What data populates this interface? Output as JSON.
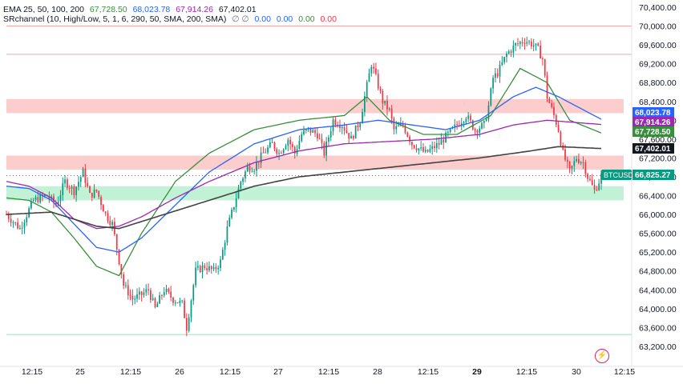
{
  "legend": {
    "ema_label": "EMA 25, 50, 100, 200",
    "ema_values": [
      "67,728.50",
      "68,023.78",
      "67,914.26",
      "67,402.01"
    ],
    "ema_colors": [
      "#388e3c",
      "#2962ff",
      "#9c27b0",
      "#424242"
    ],
    "sr_label": "SRchannel (10, High/Low, 5, 1, 6, 290, 50, SMA, 200, SMA)",
    "sr_symbols": "∅ ∅",
    "sr_values": [
      "0.00",
      "0.00",
      "0.00",
      "0.00"
    ],
    "sr_colors": [
      "#2962ff",
      "#2962ff",
      "#388e3c",
      "#f23645"
    ]
  },
  "price_badges": [
    {
      "value": "68,023.78",
      "color": "#2962ff"
    },
    {
      "value": "67,914.26",
      "color": "#9c27b0"
    },
    {
      "value": "67,728.50",
      "color": "#388e3c"
    },
    {
      "value": "67,402.01",
      "color": "#131722"
    },
    {
      "value": "66,825.27",
      "color": "#089981",
      "label": "BTCUSD"
    }
  ],
  "chart_data": {
    "type": "candlestick",
    "symbol": "BTCUSD",
    "ylim": [
      63000,
      70550
    ],
    "y_ticks": [
      "70,400.00",
      "70,000.00",
      "69,600.00",
      "69,200.00",
      "68,800.00",
      "68,400.00",
      "68,000.00",
      "67,600.00",
      "67,200.00",
      "66,800.00",
      "66,400.00",
      "66,000.00",
      "65,600.00",
      "65,200.00",
      "64,800.00",
      "64,400.00",
      "64,000.00",
      "63,600.00",
      "63,200.00"
    ],
    "x_ticks": [
      "12:15",
      "25",
      "12:15",
      "26",
      "12:15",
      "27",
      "12:15",
      "28",
      "12:15",
      "29",
      "12:15",
      "30",
      "12:15"
    ],
    "x_ticks_bold": [
      "29"
    ],
    "sr_zones": [
      {
        "from": 68150,
        "to": 68450,
        "type": "resistance"
      },
      {
        "from": 66950,
        "to": 67250,
        "type": "resistance"
      },
      {
        "from": 66300,
        "to": 66600,
        "type": "support"
      }
    ],
    "h_lines": [
      {
        "price": 70000,
        "color": "#f7a5a5"
      },
      {
        "price": 69400,
        "color": "#f7a5a5"
      },
      {
        "price": 63450,
        "color": "#9be0bd"
      }
    ],
    "last_price_line": 66825,
    "candle_anchors": [
      [
        0,
        66000
      ],
      [
        6,
        65700
      ],
      [
        12,
        66300
      ],
      [
        18,
        66400
      ],
      [
        22,
        66200
      ],
      [
        26,
        66700
      ],
      [
        30,
        66500
      ],
      [
        34,
        66900
      ],
      [
        37,
        66400
      ],
      [
        40,
        66500
      ],
      [
        44,
        66000
      ],
      [
        47,
        65800
      ],
      [
        52,
        64500
      ],
      [
        56,
        64200
      ],
      [
        60,
        64300
      ],
      [
        63,
        64400
      ],
      [
        66,
        64000
      ],
      [
        70,
        64400
      ],
      [
        74,
        64200
      ],
      [
        78,
        64100
      ],
      [
        80,
        63600
      ],
      [
        84,
        64800
      ],
      [
        88,
        64900
      ],
      [
        92,
        64800
      ],
      [
        95,
        65000
      ],
      [
        98,
        65700
      ],
      [
        101,
        66200
      ],
      [
        104,
        66700
      ],
      [
        107,
        67000
      ],
      [
        110,
        67000
      ],
      [
        114,
        67300
      ],
      [
        118,
        67500
      ],
      [
        121,
        67300
      ],
      [
        125,
        67600
      ],
      [
        128,
        67300
      ],
      [
        131,
        67700
      ],
      [
        134,
        67800
      ],
      [
        138,
        67700
      ],
      [
        141,
        67300
      ],
      [
        145,
        68000
      ],
      [
        149,
        67900
      ],
      [
        153,
        67600
      ],
      [
        157,
        68000
      ],
      [
        159,
        68500
      ],
      [
        162,
        69200
      ],
      [
        164,
        68900
      ],
      [
        167,
        68400
      ],
      [
        170,
        68200
      ],
      [
        172,
        67800
      ],
      [
        176,
        67900
      ],
      [
        180,
        67500
      ],
      [
        183,
        67400
      ],
      [
        186,
        67300
      ],
      [
        189,
        67400
      ],
      [
        192,
        67500
      ],
      [
        196,
        67700
      ],
      [
        200,
        67900
      ],
      [
        204,
        68100
      ],
      [
        208,
        67800
      ],
      [
        212,
        67900
      ],
      [
        214,
        68300
      ],
      [
        216,
        68900
      ],
      [
        218,
        69000
      ],
      [
        222,
        69400
      ],
      [
        226,
        69600
      ],
      [
        230,
        69700
      ],
      [
        234,
        69600
      ],
      [
        236,
        69500
      ],
      [
        238,
        69300
      ],
      [
        240,
        68500
      ],
      [
        243,
        68100
      ],
      [
        245,
        67800
      ],
      [
        247,
        67300
      ],
      [
        250,
        66900
      ],
      [
        253,
        67200
      ],
      [
        256,
        67100
      ],
      [
        258,
        66800
      ],
      [
        261,
        66500
      ],
      [
        263,
        66700
      ],
      [
        264,
        66825
      ]
    ],
    "ema_anchors": {
      "ema25": [
        [
          0,
          66350
        ],
        [
          10,
          66300
        ],
        [
          20,
          66050
        ],
        [
          30,
          65500
        ],
        [
          40,
          64900
        ],
        [
          50,
          64700
        ],
        [
          60,
          65600
        ],
        [
          75,
          66700
        ],
        [
          90,
          67300
        ],
        [
          110,
          67800
        ],
        [
          130,
          68000
        ],
        [
          150,
          68100
        ],
        [
          160,
          68500
        ],
        [
          170,
          68000
        ],
        [
          185,
          67700
        ],
        [
          200,
          67700
        ],
        [
          215,
          68100
        ],
        [
          228,
          69100
        ],
        [
          240,
          68800
        ],
        [
          250,
          68000
        ],
        [
          264,
          67730
        ]
      ],
      "ema50": [
        [
          0,
          66600
        ],
        [
          10,
          66550
        ],
        [
          20,
          66300
        ],
        [
          30,
          65800
        ],
        [
          40,
          65300
        ],
        [
          50,
          65200
        ],
        [
          60,
          65500
        ],
        [
          75,
          66200
        ],
        [
          90,
          66900
        ],
        [
          110,
          67500
        ],
        [
          130,
          67800
        ],
        [
          150,
          67900
        ],
        [
          165,
          68000
        ],
        [
          180,
          67900
        ],
        [
          195,
          67800
        ],
        [
          210,
          68000
        ],
        [
          225,
          68500
        ],
        [
          235,
          68700
        ],
        [
          245,
          68500
        ],
        [
          264,
          68020
        ]
      ],
      "ema100": [
        [
          0,
          66700
        ],
        [
          10,
          66600
        ],
        [
          20,
          66350
        ],
        [
          30,
          65900
        ],
        [
          40,
          65700
        ],
        [
          50,
          65750
        ],
        [
          60,
          65950
        ],
        [
          75,
          66350
        ],
        [
          90,
          66700
        ],
        [
          110,
          67100
        ],
        [
          130,
          67350
        ],
        [
          150,
          67500
        ],
        [
          170,
          67550
        ],
        [
          190,
          67600
        ],
        [
          210,
          67700
        ],
        [
          225,
          67900
        ],
        [
          240,
          68000
        ],
        [
          264,
          67910
        ]
      ],
      "ema200": [
        [
          0,
          66000
        ],
        [
          20,
          66050
        ],
        [
          40,
          65750
        ],
        [
          50,
          65700
        ],
        [
          70,
          66000
        ],
        [
          90,
          66300
        ],
        [
          110,
          66600
        ],
        [
          130,
          66800
        ],
        [
          150,
          66900
        ],
        [
          170,
          67000
        ],
        [
          190,
          67100
        ],
        [
          210,
          67200
        ],
        [
          230,
          67330
        ],
        [
          245,
          67440
        ],
        [
          264,
          67400
        ]
      ]
    },
    "candle_count": 265
  }
}
